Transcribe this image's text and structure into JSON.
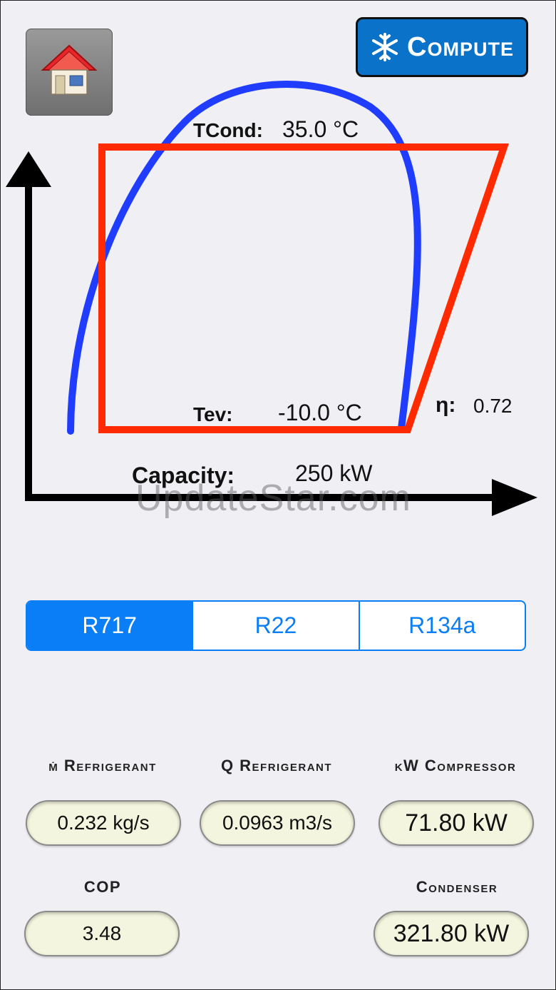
{
  "toolbar": {
    "compute_label": "Compute"
  },
  "diagram": {
    "tcond_label": "TCond:",
    "tcond_value": "35.0 °C",
    "tev_label": "Tev:",
    "tev_value": "-10.0 °C",
    "eta_label": "η:",
    "eta_value": "0.72",
    "capacity_label": "Capacity:",
    "capacity_value": "250 kW",
    "colors": {
      "dome": "#1f3cff",
      "cycle": "#ff2a00",
      "axes": "#000000"
    }
  },
  "watermark": "UpdateStar.com",
  "refrigerants": {
    "options": [
      "R717",
      "R22",
      "R134a"
    ],
    "selected": "R717"
  },
  "results": {
    "m_refrigerant_label": "ṁ Refrigerant",
    "m_refrigerant_value": "0.232 kg/s",
    "q_refrigerant_label": "Q Refrigerant",
    "q_refrigerant_value": "0.0963 m3/s",
    "kw_compressor_label": "kW Compressor",
    "kw_compressor_value": "71.80 kW",
    "cop_label": "COP",
    "cop_value": "3.48",
    "condenser_label": "Condenser",
    "condenser_value": "321.80 kW"
  }
}
